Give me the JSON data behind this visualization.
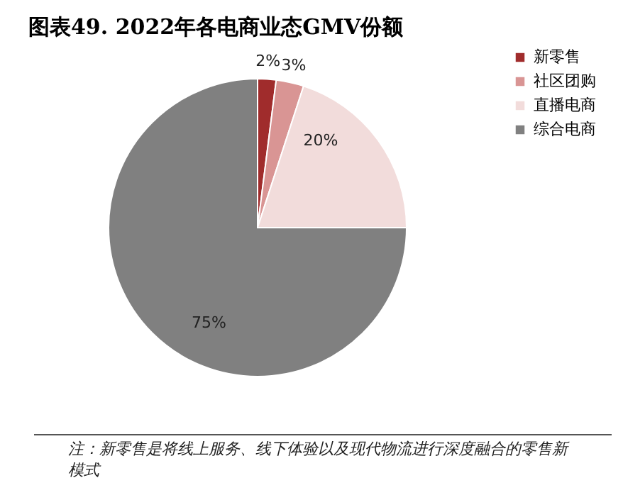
{
  "chart_data": {
    "type": "pie",
    "title": "图表49. 2022年各电商业态GMV份额",
    "categories": [
      "新零售",
      "社区团购",
      "直播电商",
      "综合电商"
    ],
    "values": [
      2,
      3,
      20,
      75
    ],
    "colors": [
      "#a02c2c",
      "#d99594",
      "#f2dcdb",
      "#808080"
    ],
    "value_labels": [
      "2%",
      "3%",
      "20%",
      "75%"
    ],
    "legend": "right",
    "annotations": [
      "注：新零售是将线上服务、线下体验以及现代物流进行深度融合的零售新模式"
    ]
  }
}
